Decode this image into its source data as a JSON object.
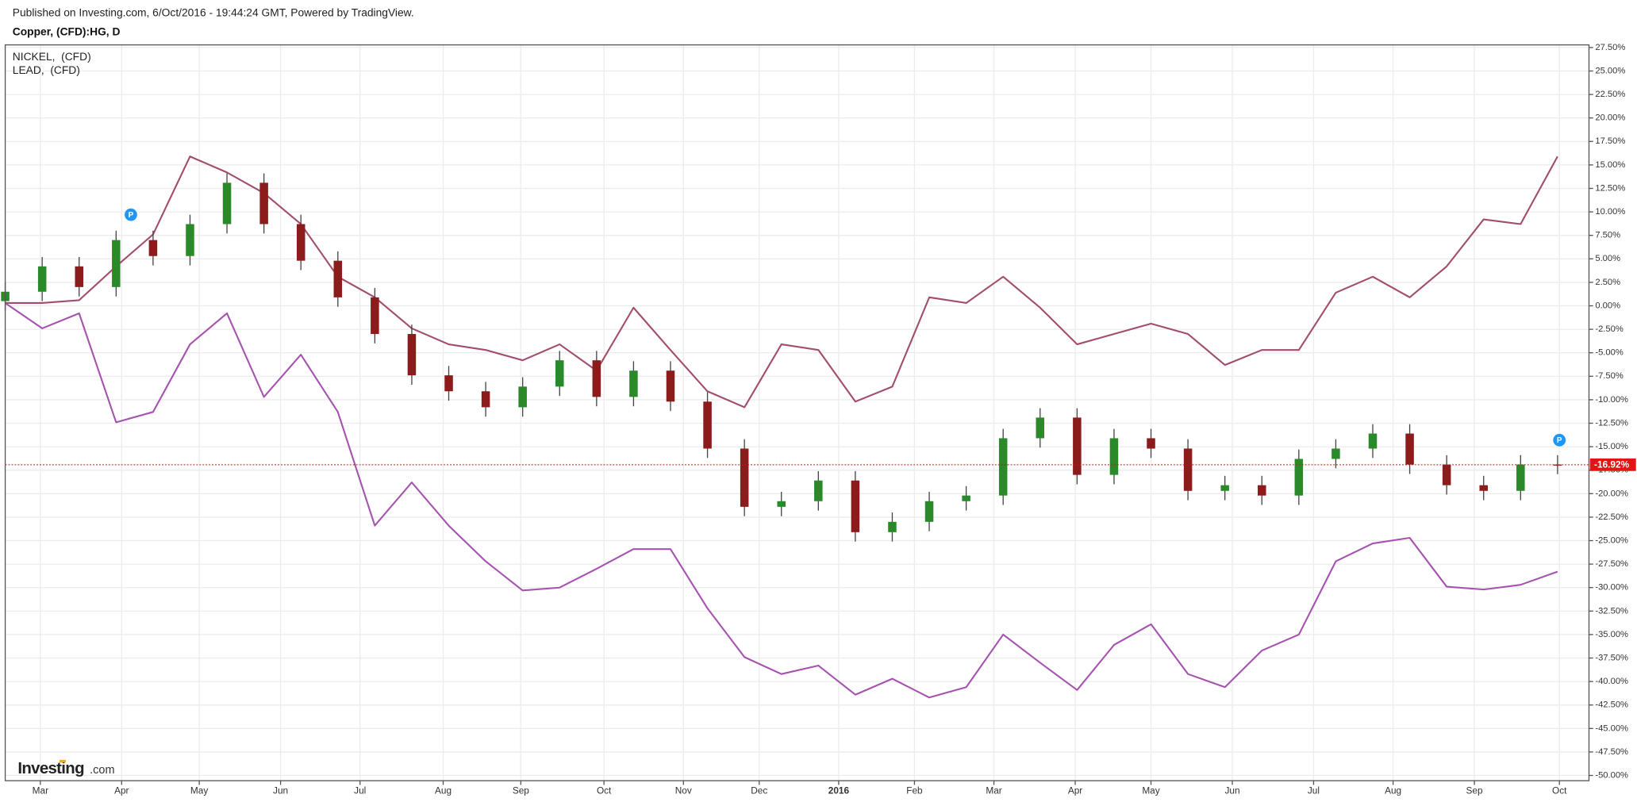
{
  "header": {
    "published": "Published on Investing.com, 6/Oct/2016 - 19:44:24 GMT, Powered by TradingView.",
    "symbol": "Copper, (CFD):HG, D"
  },
  "logo": {
    "brand": "Investing",
    "suffix": ".com"
  },
  "chart_data": {
    "type": "candlestick",
    "x": [
      0,
      2,
      4,
      6,
      8,
      10,
      12,
      14,
      16,
      18,
      20,
      22,
      24,
      26,
      28,
      30,
      32,
      34,
      36,
      38,
      40,
      42,
      44,
      46,
      48,
      50,
      52,
      54,
      56,
      58,
      60,
      62,
      64,
      66,
      68,
      70,
      72,
      74,
      76,
      78,
      80,
      82,
      84
    ],
    "xlim": [
      0,
      85.7
    ],
    "xticks": [
      {
        "value": 1.9,
        "label": "Mar"
      },
      {
        "value": 6.3,
        "label": "Apr"
      },
      {
        "value": 10.5,
        "label": "May"
      },
      {
        "value": 14.9,
        "label": "Jun"
      },
      {
        "value": 19.2,
        "label": "Jul"
      },
      {
        "value": 23.7,
        "label": "Aug"
      },
      {
        "value": 27.9,
        "label": "Sep"
      },
      {
        "value": 32.4,
        "label": "Oct"
      },
      {
        "value": 36.7,
        "label": "Nov"
      },
      {
        "value": 40.8,
        "label": "Dec"
      },
      {
        "value": 45.1,
        "label": "2016"
      },
      {
        "value": 49.2,
        "label": "Feb"
      },
      {
        "value": 53.5,
        "label": "Mar"
      },
      {
        "value": 57.9,
        "label": "Apr"
      },
      {
        "value": 62.0,
        "label": "May"
      },
      {
        "value": 66.4,
        "label": "Jun"
      },
      {
        "value": 70.8,
        "label": "Jul"
      },
      {
        "value": 75.1,
        "label": "Aug"
      },
      {
        "value": 79.5,
        "label": "Sep"
      },
      {
        "value": 84.1,
        "label": "Oct"
      }
    ],
    "ylim": [
      -50.56,
      27.78
    ],
    "yticks": [
      {
        "value": 27.5,
        "label": "27.50%"
      },
      {
        "value": 25,
        "label": "25.00%"
      },
      {
        "value": 22.5,
        "label": "22.50%"
      },
      {
        "value": 20,
        "label": "20.00%"
      },
      {
        "value": 17.5,
        "label": "17.50%"
      },
      {
        "value": 15,
        "label": "15.00%"
      },
      {
        "value": 12.5,
        "label": "12.50%"
      },
      {
        "value": 10,
        "label": "10.00%"
      },
      {
        "value": 7.5,
        "label": "7.50%"
      },
      {
        "value": 5,
        "label": "5.00%"
      },
      {
        "value": 2.5,
        "label": "2.50%"
      },
      {
        "value": 0,
        "label": "0.00%"
      },
      {
        "value": -2.5,
        "label": "-2.50%"
      },
      {
        "value": -5,
        "label": "-5.00%"
      },
      {
        "value": -7.5,
        "label": "-7.50%"
      },
      {
        "value": -10,
        "label": "-10.00%"
      },
      {
        "value": -12.5,
        "label": "-12.50%"
      },
      {
        "value": -15,
        "label": "-15.00%"
      },
      {
        "value": -17.5,
        "label": "-17.50%"
      },
      {
        "value": -20,
        "label": "-20.00%"
      },
      {
        "value": -22.5,
        "label": "-22.50%"
      },
      {
        "value": -25,
        "label": "-25.00%"
      },
      {
        "value": -27.5,
        "label": "-27.50%"
      },
      {
        "value": -30,
        "label": "-30.00%"
      },
      {
        "value": -32.5,
        "label": "-32.50%"
      },
      {
        "value": -35,
        "label": "-35.00%"
      },
      {
        "value": -37.5,
        "label": "-37.50%"
      },
      {
        "value": -40,
        "label": "-40.00%"
      },
      {
        "value": -42.5,
        "label": "-42.50%"
      },
      {
        "value": -45,
        "label": "-45.00%"
      },
      {
        "value": -47.5,
        "label": "-47.50%"
      },
      {
        "value": -50,
        "label": "-50.00%"
      }
    ],
    "grid": true,
    "candles": {
      "up_color": "#2a8a2a",
      "down_color": "#8c1c1c",
      "open": [
        0.5,
        1.5,
        4.2,
        2.0,
        7.0,
        5.3,
        8.7,
        13.1,
        8.7,
        4.8,
        0.9,
        -3.0,
        -7.4,
        -9.1,
        -10.8,
        -8.6,
        -5.8,
        -9.7,
        -6.9,
        -10.2,
        -15.2,
        -21.4,
        -20.8,
        -18.6,
        -24.1,
        -23.0,
        -20.8,
        -20.2,
        -14.1,
        -11.9,
        -18.0,
        -14.1,
        -15.2,
        -19.7,
        -19.1,
        -20.2,
        -16.3,
        -15.2,
        -13.6,
        -16.9,
        -19.1,
        -19.7,
        -16.9
      ],
      "high": [
        2.5,
        5.2,
        5.2,
        8.0,
        8.0,
        9.7,
        14.1,
        14.1,
        9.7,
        5.8,
        1.9,
        -2.0,
        -6.4,
        -8.1,
        -7.6,
        -4.8,
        -4.8,
        -5.9,
        -5.9,
        -9.2,
        -14.2,
        -19.8,
        -17.6,
        -17.6,
        -22.0,
        -19.8,
        -19.2,
        -13.1,
        -10.9,
        -10.9,
        -13.1,
        -13.1,
        -14.2,
        -18.1,
        -18.1,
        -15.3,
        -14.2,
        -12.6,
        -12.6,
        -15.9,
        -18.1,
        -15.9,
        -15.9
      ],
      "low": [
        -0.5,
        0.5,
        1.0,
        1.0,
        4.3,
        4.3,
        7.7,
        7.7,
        3.8,
        -0.1,
        -4.0,
        -8.4,
        -10.1,
        -11.8,
        -11.8,
        -9.6,
        -10.7,
        -10.7,
        -11.2,
        -16.2,
        -22.4,
        -22.4,
        -21.8,
        -25.1,
        -25.1,
        -24.0,
        -21.8,
        -21.2,
        -15.1,
        -19.0,
        -19.0,
        -16.2,
        -20.7,
        -20.7,
        -21.2,
        -21.2,
        -17.3,
        -16.2,
        -17.9,
        -20.1,
        -20.7,
        -20.7,
        -17.92
      ],
      "close": [
        1.5,
        4.2,
        2.0,
        7.0,
        5.3,
        8.7,
        13.1,
        8.7,
        4.8,
        0.9,
        -3.0,
        -7.4,
        -9.1,
        -10.8,
        -8.6,
        -5.8,
        -9.7,
        -6.9,
        -10.2,
        -15.2,
        -21.4,
        -20.8,
        -18.6,
        -24.1,
        -23.0,
        -20.8,
        -20.2,
        -14.1,
        -11.9,
        -18.0,
        -14.1,
        -15.2,
        -19.7,
        -19.1,
        -20.2,
        -16.3,
        -15.2,
        -13.6,
        -16.9,
        -19.1,
        -19.7,
        -16.9,
        -16.92
      ]
    },
    "series": [
      {
        "name": "NICKEL,  (CFD)",
        "color": "#a24d6e",
        "values": [
          0.3,
          0.3,
          0.6,
          4.2,
          7.6,
          15.9,
          14.2,
          12.0,
          8.7,
          3.1,
          0.9,
          -2.4,
          -4.1,
          -4.7,
          -5.8,
          -4.1,
          -6.9,
          -0.2,
          -4.7,
          -9.1,
          -10.8,
          -4.1,
          -4.7,
          -10.2,
          -8.6,
          0.9,
          0.3,
          3.1,
          -0.2,
          -4.1,
          -3.0,
          -1.9,
          -3.0,
          -6.3,
          -4.7,
          -4.7,
          1.4,
          3.1,
          0.9,
          4.2,
          9.2,
          8.7,
          15.9
        ]
      },
      {
        "name": "LEAD,  (CFD)",
        "color": "#a653b0",
        "values": [
          0.3,
          -2.4,
          -0.8,
          -12.4,
          -11.3,
          -4.1,
          -0.8,
          -9.7,
          -5.2,
          -11.3,
          -23.4,
          -18.8,
          -23.4,
          -27.2,
          -30.3,
          -30.0,
          -28.0,
          -25.9,
          -25.9,
          -32.2,
          -37.4,
          -39.2,
          -38.3,
          -41.4,
          -39.7,
          -41.7,
          -40.6,
          -35.0,
          -38.0,
          -40.9,
          -36.1,
          -33.9,
          -39.2,
          -40.6,
          -36.7,
          -35.0,
          -27.2,
          -25.3,
          -24.7,
          -29.9,
          -30.2,
          -29.7,
          -28.3
        ]
      }
    ],
    "last_value": -16.92,
    "last_label": "-16.92%",
    "markers": [
      {
        "x": 6.8,
        "y": 9.7,
        "label": "P"
      },
      {
        "x": 84.1,
        "y": -14.3,
        "label": "P"
      }
    ]
  }
}
